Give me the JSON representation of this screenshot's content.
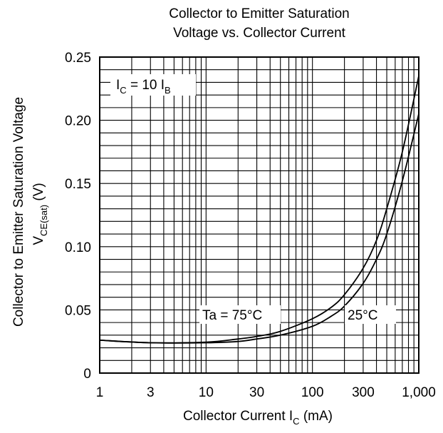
{
  "chart_data": {
    "type": "line",
    "title_line1": "Collector to Emitter Saturation",
    "title_line2": "Voltage vs. Collector Current",
    "xlabel": "Collector Current",
    "xlabel_symbol": "I",
    "xlabel_sub": "C",
    "xlabel_unit": "(mA)",
    "ylabel_line1": "Collector to Emitter Saturation Voltage",
    "ylabel_symbol": "V",
    "ylabel_sub": "CE(sat)",
    "ylabel_unit": "(V)",
    "x_scale": "log",
    "xlim": [
      1,
      1000
    ],
    "ylim": [
      0,
      0.25
    ],
    "x_ticks": [
      1,
      3,
      10,
      30,
      100,
      300,
      1000
    ],
    "x_tick_labels": [
      "1",
      "3",
      "10",
      "30",
      "100",
      "300",
      "1,000"
    ],
    "y_ticks": [
      0,
      0.05,
      0.1,
      0.15,
      0.2,
      0.25
    ],
    "y_tick_labels": [
      "0",
      "0.05",
      "0.10",
      "0.15",
      "0.20",
      "0.25"
    ],
    "grid": true,
    "annotation_condition": {
      "prefix": "I",
      "sub1": "C",
      "middle": " = 10 I",
      "sub2": "B"
    },
    "series": [
      {
        "name": "Ta = 75°C",
        "x": [
          1,
          3,
          10,
          20,
          30,
          50,
          100,
          150,
          200,
          300,
          400,
          500,
          700,
          1000
        ],
        "y": [
          0.026,
          0.024,
          0.0245,
          0.027,
          0.029,
          0.033,
          0.043,
          0.052,
          0.062,
          0.083,
          0.105,
          0.13,
          0.175,
          0.235
        ]
      },
      {
        "name": "25°C",
        "x": [
          1,
          3,
          10,
          20,
          30,
          50,
          100,
          150,
          200,
          300,
          400,
          500,
          700,
          1000
        ],
        "y": [
          0.026,
          0.024,
          0.024,
          0.025,
          0.027,
          0.03,
          0.037,
          0.045,
          0.053,
          0.071,
          0.09,
          0.11,
          0.152,
          0.205
        ]
      }
    ]
  }
}
